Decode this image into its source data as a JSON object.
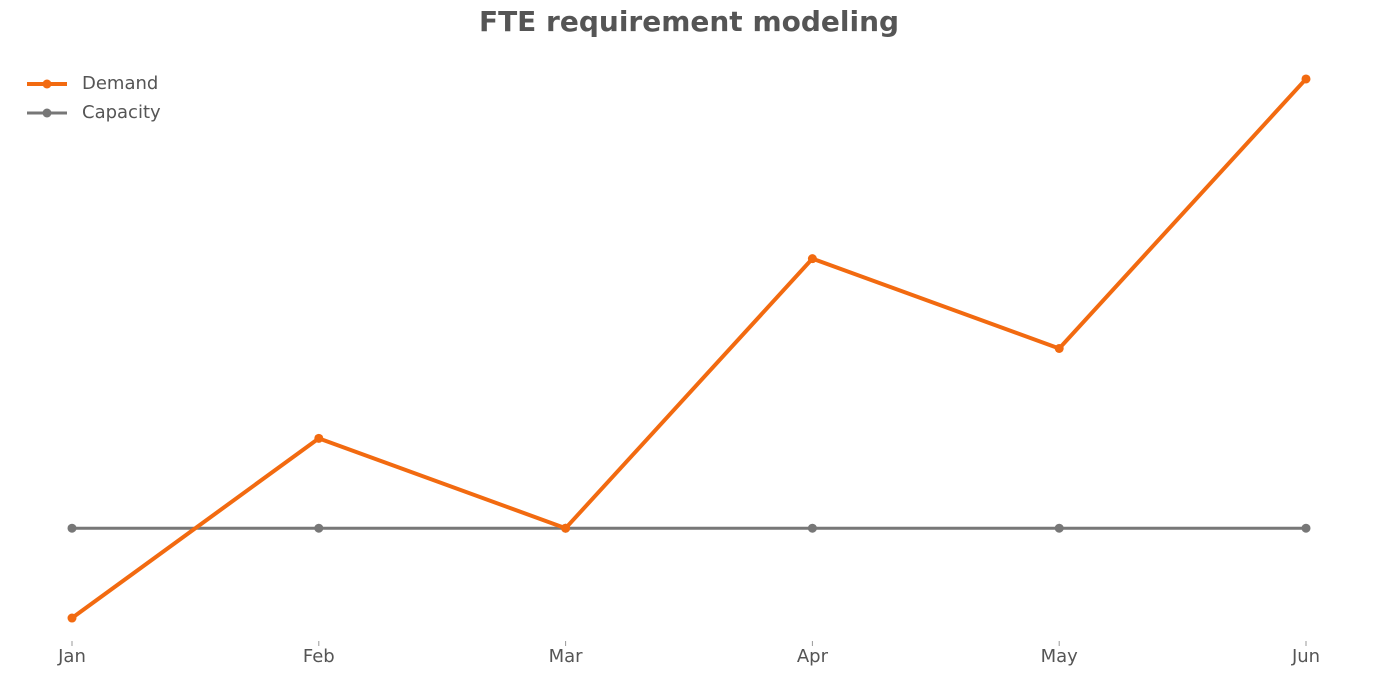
{
  "chart_data": {
    "type": "line",
    "title": "FTE requirement modeling",
    "categories": [
      "Jan",
      "Feb",
      "Mar",
      "Apr",
      "May",
      "Jun"
    ],
    "series": [
      {
        "name": "Demand",
        "color": "#f26a10",
        "values": [
          9,
          11,
          10,
          13,
          12,
          15
        ]
      },
      {
        "name": "Capacity",
        "color": "#777777",
        "values": [
          10,
          10,
          10,
          10,
          10,
          10
        ]
      }
    ],
    "ylim": [
      8.7,
      15.3
    ],
    "grid": false,
    "legend": "upper-left"
  }
}
